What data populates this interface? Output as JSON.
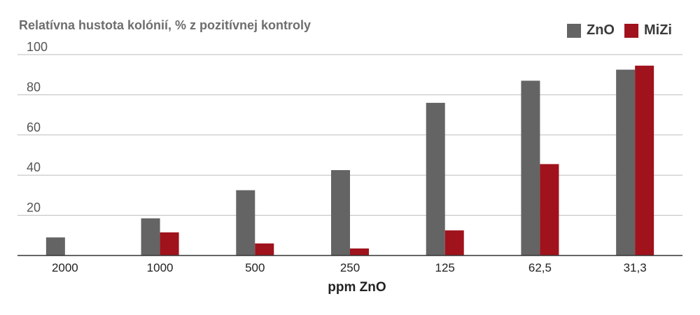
{
  "chart_data": {
    "type": "bar",
    "ylabel": "Relatívna hustota kolónií, % z pozitívnej kontroly",
    "xlabel": "ppm ZnO",
    "categories": [
      "2000",
      "1000",
      "500",
      "250",
      "125",
      "62,5",
      "31,3"
    ],
    "series": [
      {
        "name": "ZnO",
        "color": "#646464",
        "values": [
          9,
          18.5,
          32.5,
          42.5,
          76,
          87,
          92.5
        ]
      },
      {
        "name": "MiZi",
        "color": "#a0121c",
        "values": [
          0,
          11.5,
          6,
          3.5,
          12.5,
          45.5,
          94.5
        ]
      }
    ],
    "ylim": [
      0,
      100
    ],
    "yticks": [
      20,
      40,
      60,
      80,
      100
    ],
    "grid": true,
    "legend": "top-right"
  }
}
